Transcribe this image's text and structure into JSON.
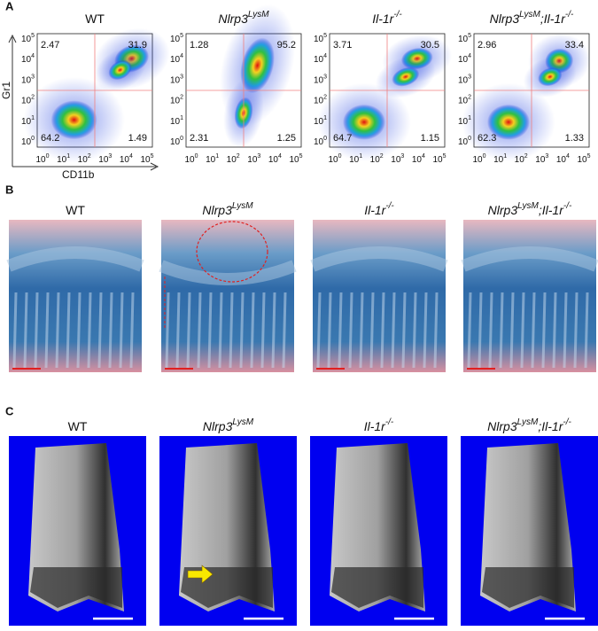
{
  "figure": {
    "panel_letters": [
      "A",
      "B",
      "C"
    ],
    "genotypes": [
      [
        {
          "text": "WT"
        }
      ],
      [
        {
          "text": "Nlrp3",
          "italic": true
        },
        {
          "text": "LysM",
          "italic": true,
          "sup": true
        }
      ],
      [
        {
          "text": "Il-1r",
          "italic": true
        },
        {
          "text": "-/-",
          "italic": true,
          "sup": true
        }
      ],
      [
        {
          "text": "Nlrp3",
          "italic": true
        },
        {
          "text": "LysM",
          "italic": true,
          "sup": true
        },
        {
          "text": ";Il-1r",
          "italic": true
        },
        {
          "text": "-/-",
          "italic": true,
          "sup": true
        }
      ]
    ],
    "flow": {
      "y_axis_label": "Gr1",
      "x_axis_label": "CD11b",
      "axis_ticks": [
        {
          "base": "10",
          "exp": "0"
        },
        {
          "base": "10",
          "exp": "1"
        },
        {
          "base": "10",
          "exp": "2"
        },
        {
          "base": "10",
          "exp": "3"
        },
        {
          "base": "10",
          "exp": "4"
        },
        {
          "base": "10",
          "exp": "5"
        }
      ],
      "quadrants": [
        {
          "top_left": 2.47,
          "top_right": 31.9,
          "bottom_left": 64.2,
          "bottom_right": 1.49
        },
        {
          "top_left": 1.28,
          "top_right": 95.2,
          "bottom_left": 2.31,
          "bottom_right": 1.25
        },
        {
          "top_left": 3.71,
          "top_right": 30.5,
          "bottom_left": 64.7,
          "bottom_right": 1.15
        },
        {
          "top_left": 2.96,
          "top_right": 33.4,
          "bottom_left": 62.3,
          "bottom_right": 1.33
        }
      ]
    }
  }
}
